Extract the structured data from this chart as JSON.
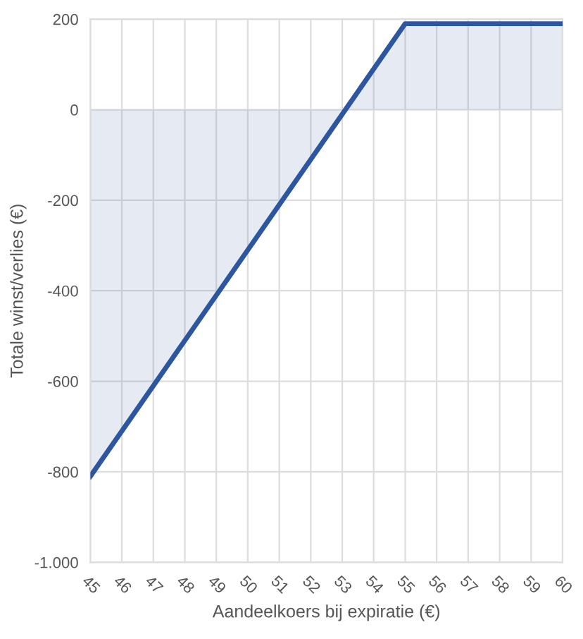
{
  "chart_data": {
    "type": "area",
    "xlabel": "Aandeelkoers bij expiratie (€)",
    "ylabel": "Totale winst/verlies (€)",
    "series": [
      {
        "color": "#2c56a0",
        "x": [
          45,
          55,
          60
        ],
        "values": [
          -810,
          190,
          190
        ]
      }
    ],
    "xlim": [
      45,
      60
    ],
    "xticks": [
      45,
      46,
      47,
      48,
      49,
      50,
      51,
      52,
      53,
      54,
      55,
      56,
      57,
      58,
      59,
      60
    ],
    "ylim": [
      -1000,
      200
    ],
    "yticks": [
      {
        "value": -1000,
        "label": "-1.000"
      },
      -800,
      -600,
      -400,
      -200,
      0,
      200
    ],
    "grid": true,
    "legend": false
  }
}
